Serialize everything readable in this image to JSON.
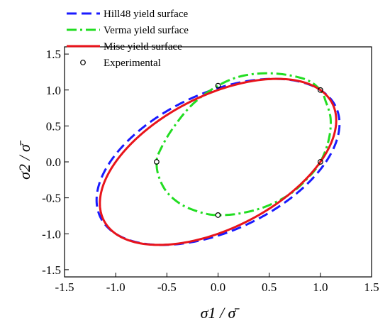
{
  "chart_data": {
    "type": "line",
    "xlabel": "σ1 / σ̄",
    "ylabel": "σ2 / σ̄",
    "xlim": [
      -1.5,
      1.5
    ],
    "ylim": [
      -1.6,
      1.6
    ],
    "x_ticks": [
      "-1.5",
      "-1.0",
      "-0.5",
      "0.0",
      "0.5",
      "1.0",
      "1.5"
    ],
    "y_ticks": [
      "-1.5",
      "-1.0",
      "-0.5",
      "0.0",
      "0.5",
      "1.0",
      "1.5"
    ],
    "legend_position": "top-left",
    "series": [
      {
        "name": "Hill48 yield surface",
        "style": "dashed",
        "color": "#1a1aff",
        "coeffs": {
          "a": 0.9,
          "b": 0.95,
          "h": 0.85
        }
      },
      {
        "name": "Verma yield surface",
        "style": "dash-dot",
        "color": "#22dd22",
        "points": [
          [
            1.0,
            1.0
          ],
          [
            0.85,
            1.15
          ],
          [
            0.55,
            1.23
          ],
          [
            0.25,
            1.2
          ],
          [
            0.0,
            1.06
          ],
          [
            -0.25,
            0.8
          ],
          [
            -0.45,
            0.45
          ],
          [
            -0.57,
            0.15
          ],
          [
            -0.6,
            0.0
          ],
          [
            -0.58,
            -0.2
          ],
          [
            -0.5,
            -0.42
          ],
          [
            -0.35,
            -0.6
          ],
          [
            -0.15,
            -0.71
          ],
          [
            0.0,
            -0.74
          ],
          [
            0.2,
            -0.72
          ],
          [
            0.45,
            -0.63
          ],
          [
            0.7,
            -0.45
          ],
          [
            0.88,
            -0.22
          ],
          [
            1.0,
            0.0
          ],
          [
            1.08,
            0.3
          ],
          [
            1.1,
            0.6
          ],
          [
            1.05,
            0.85
          ],
          [
            1.0,
            1.0
          ]
        ]
      },
      {
        "name": "Mise yield surface",
        "style": "solid",
        "color": "#e8141b",
        "coeffs": {
          "a": 1,
          "b": 1,
          "h": 1
        }
      },
      {
        "name": "Experimental",
        "style": "markers",
        "color": "#000000",
        "points": [
          [
            0.0,
            1.06
          ],
          [
            1.0,
            1.0
          ],
          [
            -0.6,
            0.0
          ],
          [
            1.0,
            0.0
          ],
          [
            0.0,
            -0.74
          ]
        ]
      }
    ]
  }
}
